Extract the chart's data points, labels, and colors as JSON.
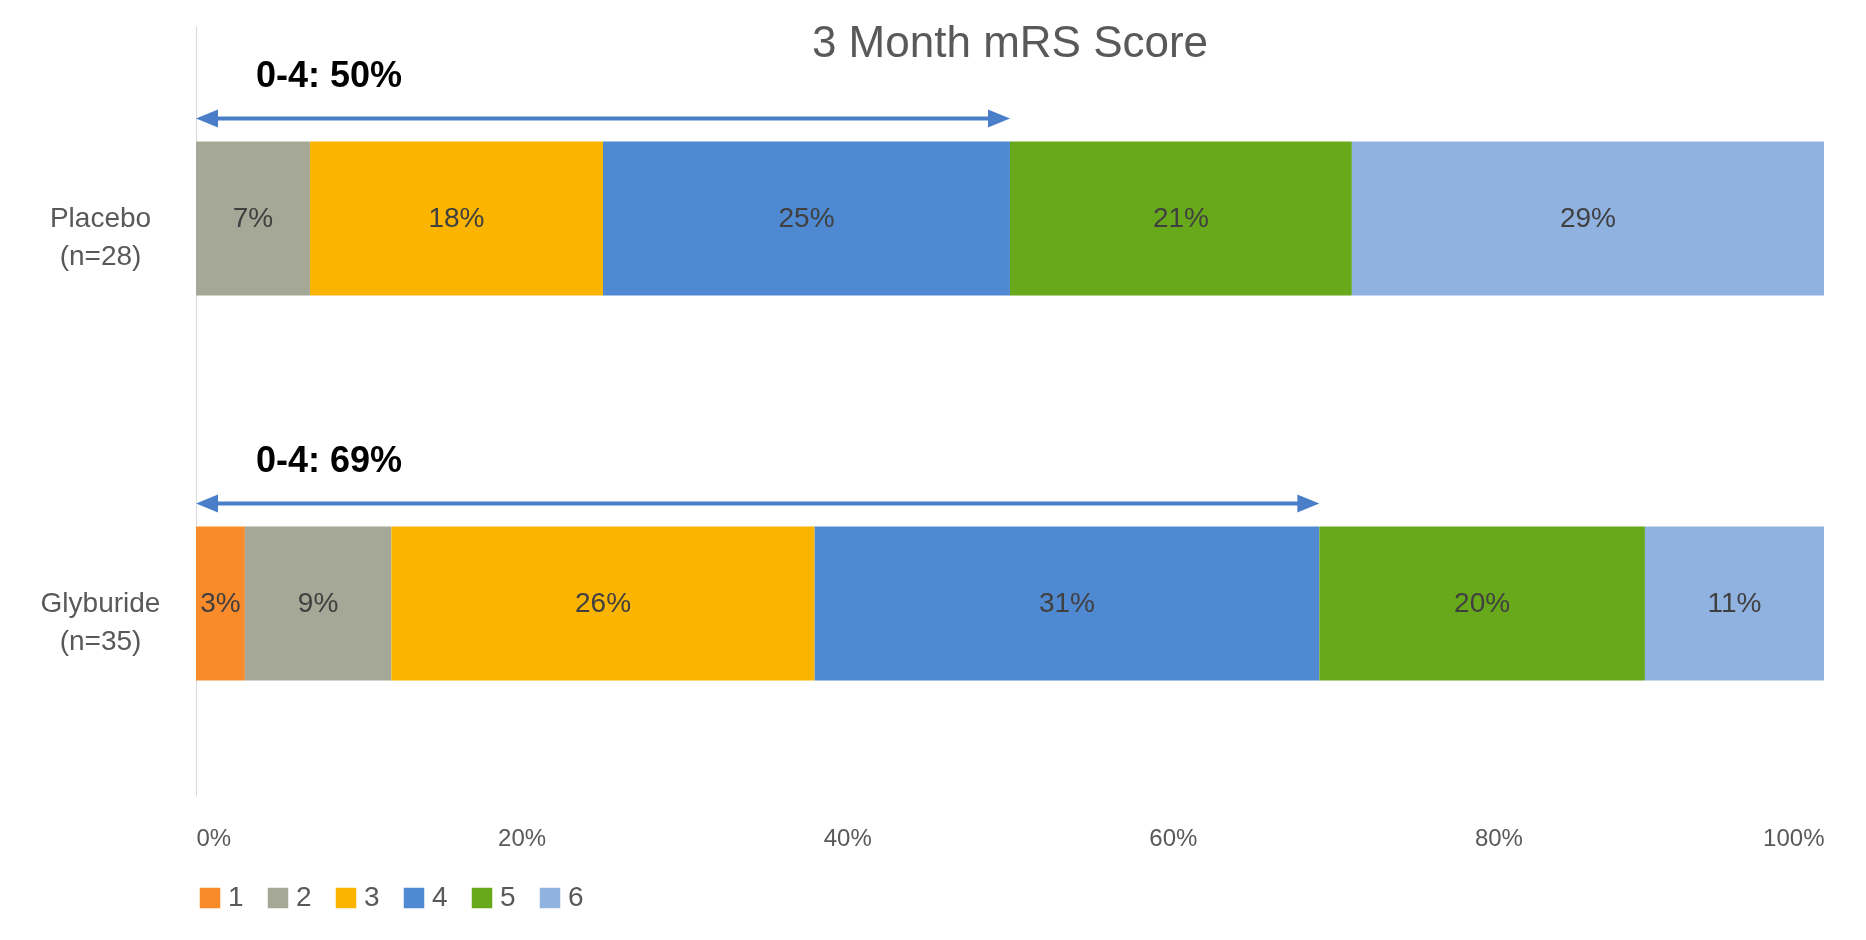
{
  "chart_data": {
    "type": "bar",
    "orientation": "horizontal",
    "stacked": true,
    "title": "3 Month mRS Score",
    "categories": [
      "Placebo (n=28)",
      "Glyburide (n=35)"
    ],
    "series": [
      {
        "name": "1",
        "color": "#f98b2a",
        "values": [
          null,
          3
        ],
        "value_labels": [
          null,
          "3%"
        ]
      },
      {
        "name": "2",
        "color": "#a5a797",
        "values": [
          7,
          9
        ],
        "value_labels": [
          "7%",
          "9%"
        ]
      },
      {
        "name": "3",
        "color": "#fbb500",
        "values": [
          18,
          26
        ],
        "value_labels": [
          "18%",
          "26%"
        ]
      },
      {
        "name": "4",
        "color": "#4f89d1",
        "values": [
          25,
          31
        ],
        "value_labels": [
          "25%",
          "31%"
        ]
      },
      {
        "name": "5",
        "color": "#68a81b",
        "values": [
          21,
          20
        ],
        "value_labels": [
          "21%",
          "20%"
        ]
      },
      {
        "name": "6",
        "color": "#90b2e0",
        "values": [
          29,
          11
        ],
        "value_labels": [
          "29%",
          "11%"
        ]
      }
    ],
    "xlim": [
      0,
      100
    ],
    "xticks": [
      {
        "value": 0,
        "label": "0%"
      },
      {
        "value": 20,
        "label": "20%"
      },
      {
        "value": 40,
        "label": "40%"
      },
      {
        "value": 60,
        "label": "60%"
      },
      {
        "value": 80,
        "label": "80%"
      },
      {
        "value": 100,
        "label": "100%"
      }
    ],
    "legend": "bottom",
    "annotations": [
      "0-4: 50%",
      "0-4: 69%"
    ]
  }
}
